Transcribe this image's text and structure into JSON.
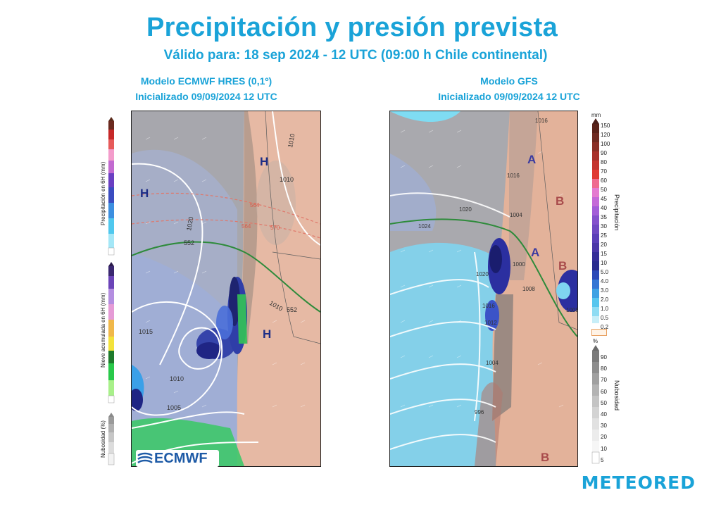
{
  "header": {
    "title": "Precipitación y presión prevista",
    "subtitle": "Válido para: 18 sep 2024 - 12 UTC (09:00 h Chile continental)"
  },
  "left_model": {
    "name": "Modelo ECMWF HRES (0,1º)",
    "init": "Inicializado 09/09/2024 12 UTC",
    "logo_text": "ECMWF",
    "legends": {
      "precip_label": "Precipitación en 6H (mm)",
      "snow_label": "Nieve acumulada en 6H (mm)",
      "cloud_label": "Nubosidad (%)"
    },
    "map_labels": [
      "H",
      "H",
      "H"
    ],
    "isobars": [
      "1010",
      "1010",
      "1020",
      "1015",
      "1010",
      "1005",
      "552",
      "552",
      "1010",
      "564",
      "570",
      "564"
    ]
  },
  "right_model": {
    "name": "Modelo GFS",
    "init": "Inicializado 09/09/2024 12 UTC",
    "map_labels": [
      "A",
      "A",
      "B",
      "B",
      "B"
    ],
    "isobars": [
      "1016",
      "1020",
      "1024",
      "1020",
      "1016",
      "1012",
      "1008",
      "1004",
      "1000",
      "996",
      "1004",
      "1008",
      "1016"
    ],
    "precip_legend": {
      "unit": "mm",
      "title": "Precipitación",
      "ticks": [
        "150",
        "120",
        "100",
        "90",
        "80",
        "70",
        "60",
        "50",
        "45",
        "40",
        "35",
        "30",
        "25",
        "20",
        "15",
        "10",
        "5.0",
        "4.0",
        "3.0",
        "2.0",
        "1.0",
        "0.5",
        "0.2"
      ]
    },
    "cloud_legend": {
      "unit": "%",
      "title": "Nubosidad",
      "ticks": [
        "90",
        "80",
        "70",
        "60",
        "50",
        "40",
        "30",
        "20",
        "10",
        "5"
      ]
    }
  },
  "brand": "METEORED",
  "colors": {
    "accent": "#1aa3d8",
    "ocean_light": "#62d2f0",
    "precip_heavy": "#2b2f9a",
    "land": "#e9b49b",
    "snow_green": "#29c94a"
  }
}
